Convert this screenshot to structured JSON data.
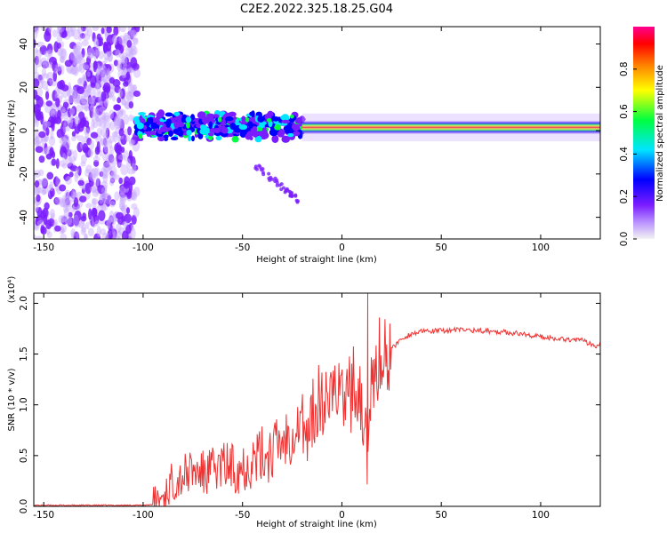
{
  "title": "C2E2.2022.325.18.25.G04",
  "chart_data": [
    {
      "type": "heatmap",
      "xlabel": "Height of straight line (km)",
      "ylabel": "Frequency (Hz)",
      "xlim": [
        -155,
        130
      ],
      "ylim": [
        -50,
        48
      ],
      "xticks": [
        -150,
        -100,
        -50,
        0,
        50,
        100
      ],
      "yticks": [
        -40,
        -20,
        0,
        20,
        40
      ],
      "colorbar": {
        "label": "Normalized spectral amplitude",
        "range": [
          0,
          1
        ],
        "ticks": [
          "0.0",
          "0.2",
          "0.4",
          "0.6",
          "0.8"
        ],
        "colors": [
          "#f3f3f3",
          "#7a1cff",
          "#0000ff",
          "#00e5ff",
          "#00ff40",
          "#ffff00",
          "#ff8000",
          "#ff0000",
          "#ff0090"
        ]
      },
      "features": [
        {
          "name": "broadband noise",
          "x_range": [
            -155,
            -103
          ],
          "y_range": [
            -50,
            48
          ],
          "amplitude": 0.15
        },
        {
          "name": "scattered band",
          "x_range": [
            -103,
            -20
          ],
          "y_center": 2,
          "y_halfwidth": 6,
          "amplitude": 0.55
        },
        {
          "name": "diagonal tail",
          "x_range": [
            -45,
            -22
          ],
          "y_range": [
            -15,
            -32
          ],
          "amplitude": 0.12
        },
        {
          "name": "steady tone",
          "x_range": [
            -20,
            130
          ],
          "y_center": 1.5,
          "y_halfwidth": 2,
          "amplitude": 0.95
        }
      ]
    },
    {
      "type": "line",
      "xlabel": "Height of straight line (km)",
      "ylabel": "SNR (10 * v/v)",
      "yscale_label": "(x10⁴)",
      "xlim": [
        -155,
        130
      ],
      "ylim": [
        0,
        2.1
      ],
      "xticks": [
        -150,
        -100,
        -50,
        0,
        50,
        100
      ],
      "yticks": [
        "0.0",
        "0.5",
        "1.0",
        "1.5",
        "2.0"
      ],
      "series": [
        {
          "color": "#ee3333",
          "x": [
            -155,
            -140,
            -120,
            -100,
            -95,
            -90,
            -85,
            -80,
            -75,
            -70,
            -65,
            -60,
            -55,
            -50,
            -45,
            -40,
            -35,
            -30,
            -25,
            -20,
            -17,
            -15,
            -10,
            -5,
            0,
            5,
            10,
            12,
            13,
            14,
            15,
            17,
            20,
            25,
            30,
            35,
            40,
            50,
            60,
            70,
            80,
            90,
            100,
            110,
            120,
            125,
            128,
            130
          ],
          "y": [
            0.01,
            0.01,
            0.01,
            0.01,
            0.02,
            0.1,
            0.25,
            0.3,
            0.35,
            0.32,
            0.35,
            0.4,
            0.38,
            0.4,
            0.45,
            0.5,
            0.55,
            0.65,
            0.75,
            0.85,
            0.5,
            0.9,
            1.0,
            1.1,
            1.15,
            1.1,
            1.0,
            0.6,
            0.35,
            0.8,
            1.2,
            1.3,
            1.4,
            1.55,
            1.65,
            1.7,
            1.72,
            1.73,
            1.74,
            1.73,
            1.72,
            1.7,
            1.67,
            1.65,
            1.64,
            1.6,
            1.58,
            1.62
          ]
        }
      ]
    }
  ]
}
